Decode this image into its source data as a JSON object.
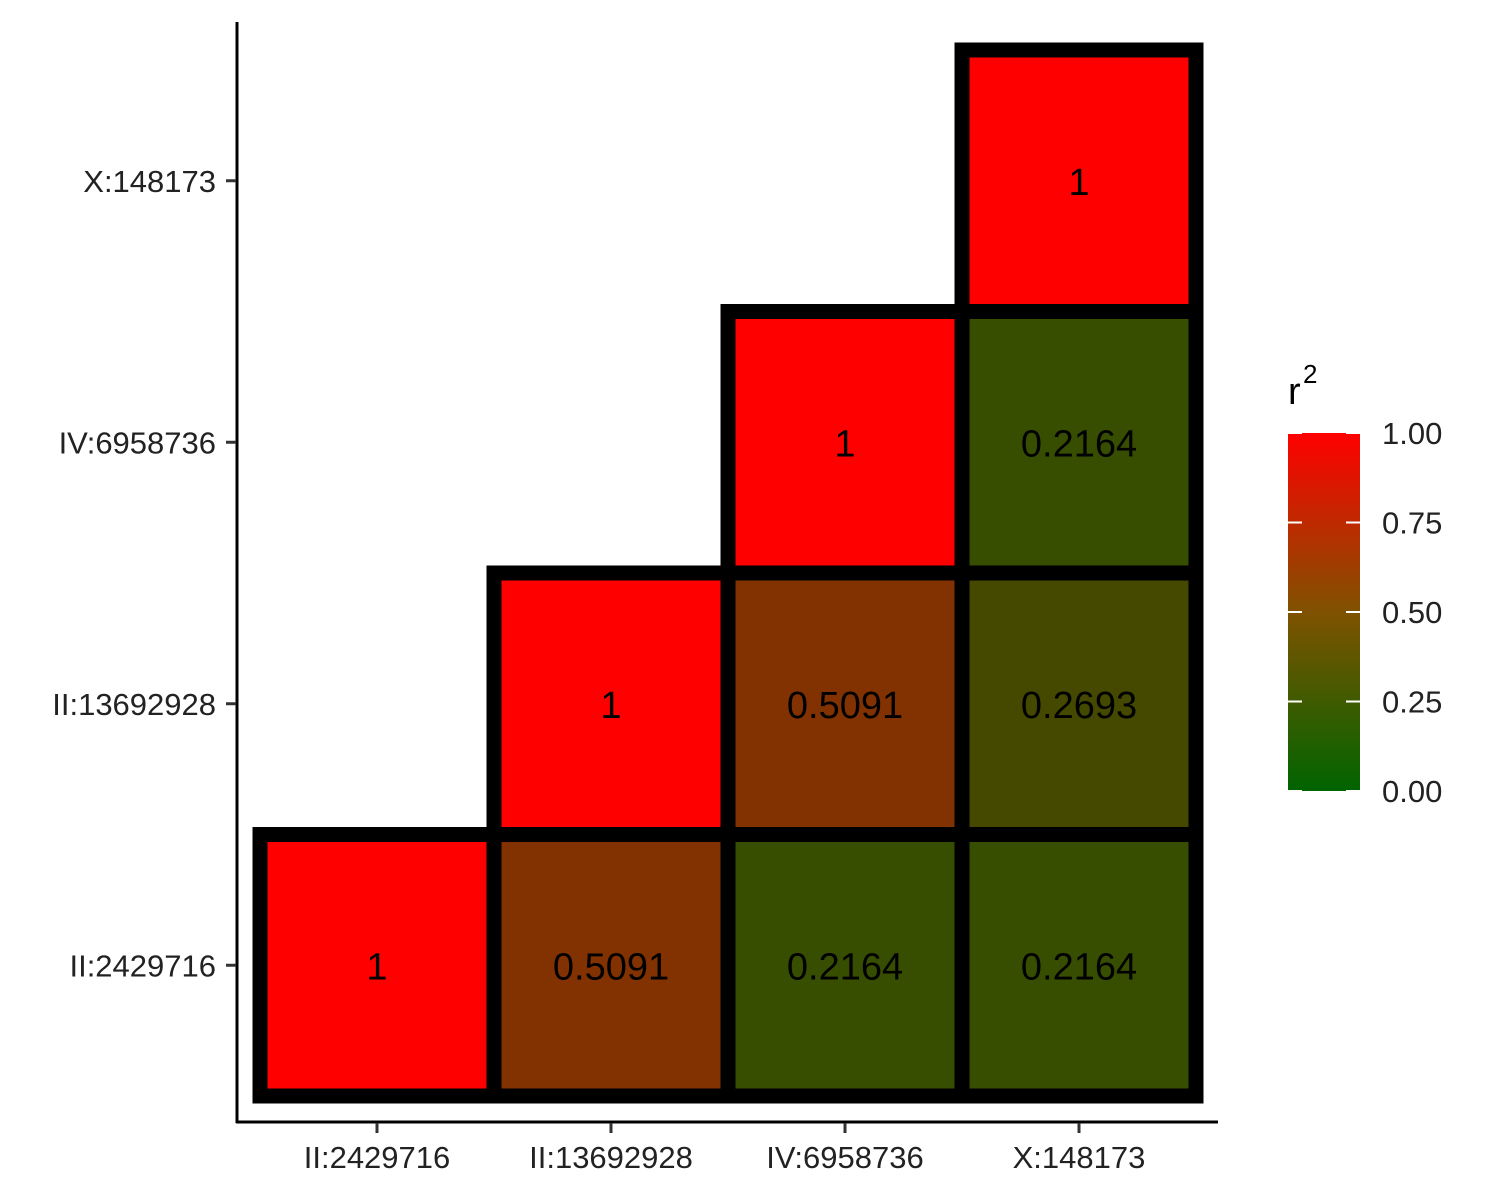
{
  "chart_data": {
    "type": "heatmap",
    "x_categories": [
      "II:2429716",
      "II:13692928",
      "IV:6958736",
      "X:148173"
    ],
    "y_categories": [
      "II:2429716",
      "II:13692928",
      "IV:6958736",
      "X:148173"
    ],
    "cells": [
      {
        "x": "II:2429716",
        "y": "II:2429716",
        "value": 1,
        "label": "1"
      },
      {
        "x": "II:13692928",
        "y": "II:2429716",
        "value": 0.5091,
        "label": "0.5091"
      },
      {
        "x": "IV:6958736",
        "y": "II:2429716",
        "value": 0.2164,
        "label": "0.2164"
      },
      {
        "x": "X:148173",
        "y": "II:2429716",
        "value": 0.2164,
        "label": "0.2164"
      },
      {
        "x": "II:13692928",
        "y": "II:13692928",
        "value": 1,
        "label": "1"
      },
      {
        "x": "IV:6958736",
        "y": "II:13692928",
        "value": 0.5091,
        "label": "0.5091"
      },
      {
        "x": "X:148173",
        "y": "II:13692928",
        "value": 0.2693,
        "label": "0.2693"
      },
      {
        "x": "IV:6958736",
        "y": "IV:6958736",
        "value": 1,
        "label": "1"
      },
      {
        "x": "X:148173",
        "y": "IV:6958736",
        "value": 0.2164,
        "label": "0.2164"
      },
      {
        "x": "X:148173",
        "y": "X:148173",
        "value": 1,
        "label": "1"
      }
    ],
    "legend": {
      "title": "r",
      "title_superscript": "2",
      "position": "right",
      "range": [
        0,
        1
      ],
      "breaks": [
        0,
        0.25,
        0.5,
        0.75,
        1
      ],
      "break_labels": [
        "0.00",
        "0.25",
        "0.50",
        "0.75",
        "1.00"
      ],
      "low_color": "#006400",
      "high_color": "#ff0000"
    },
    "cell_border_color": "#000000",
    "grid": false
  }
}
